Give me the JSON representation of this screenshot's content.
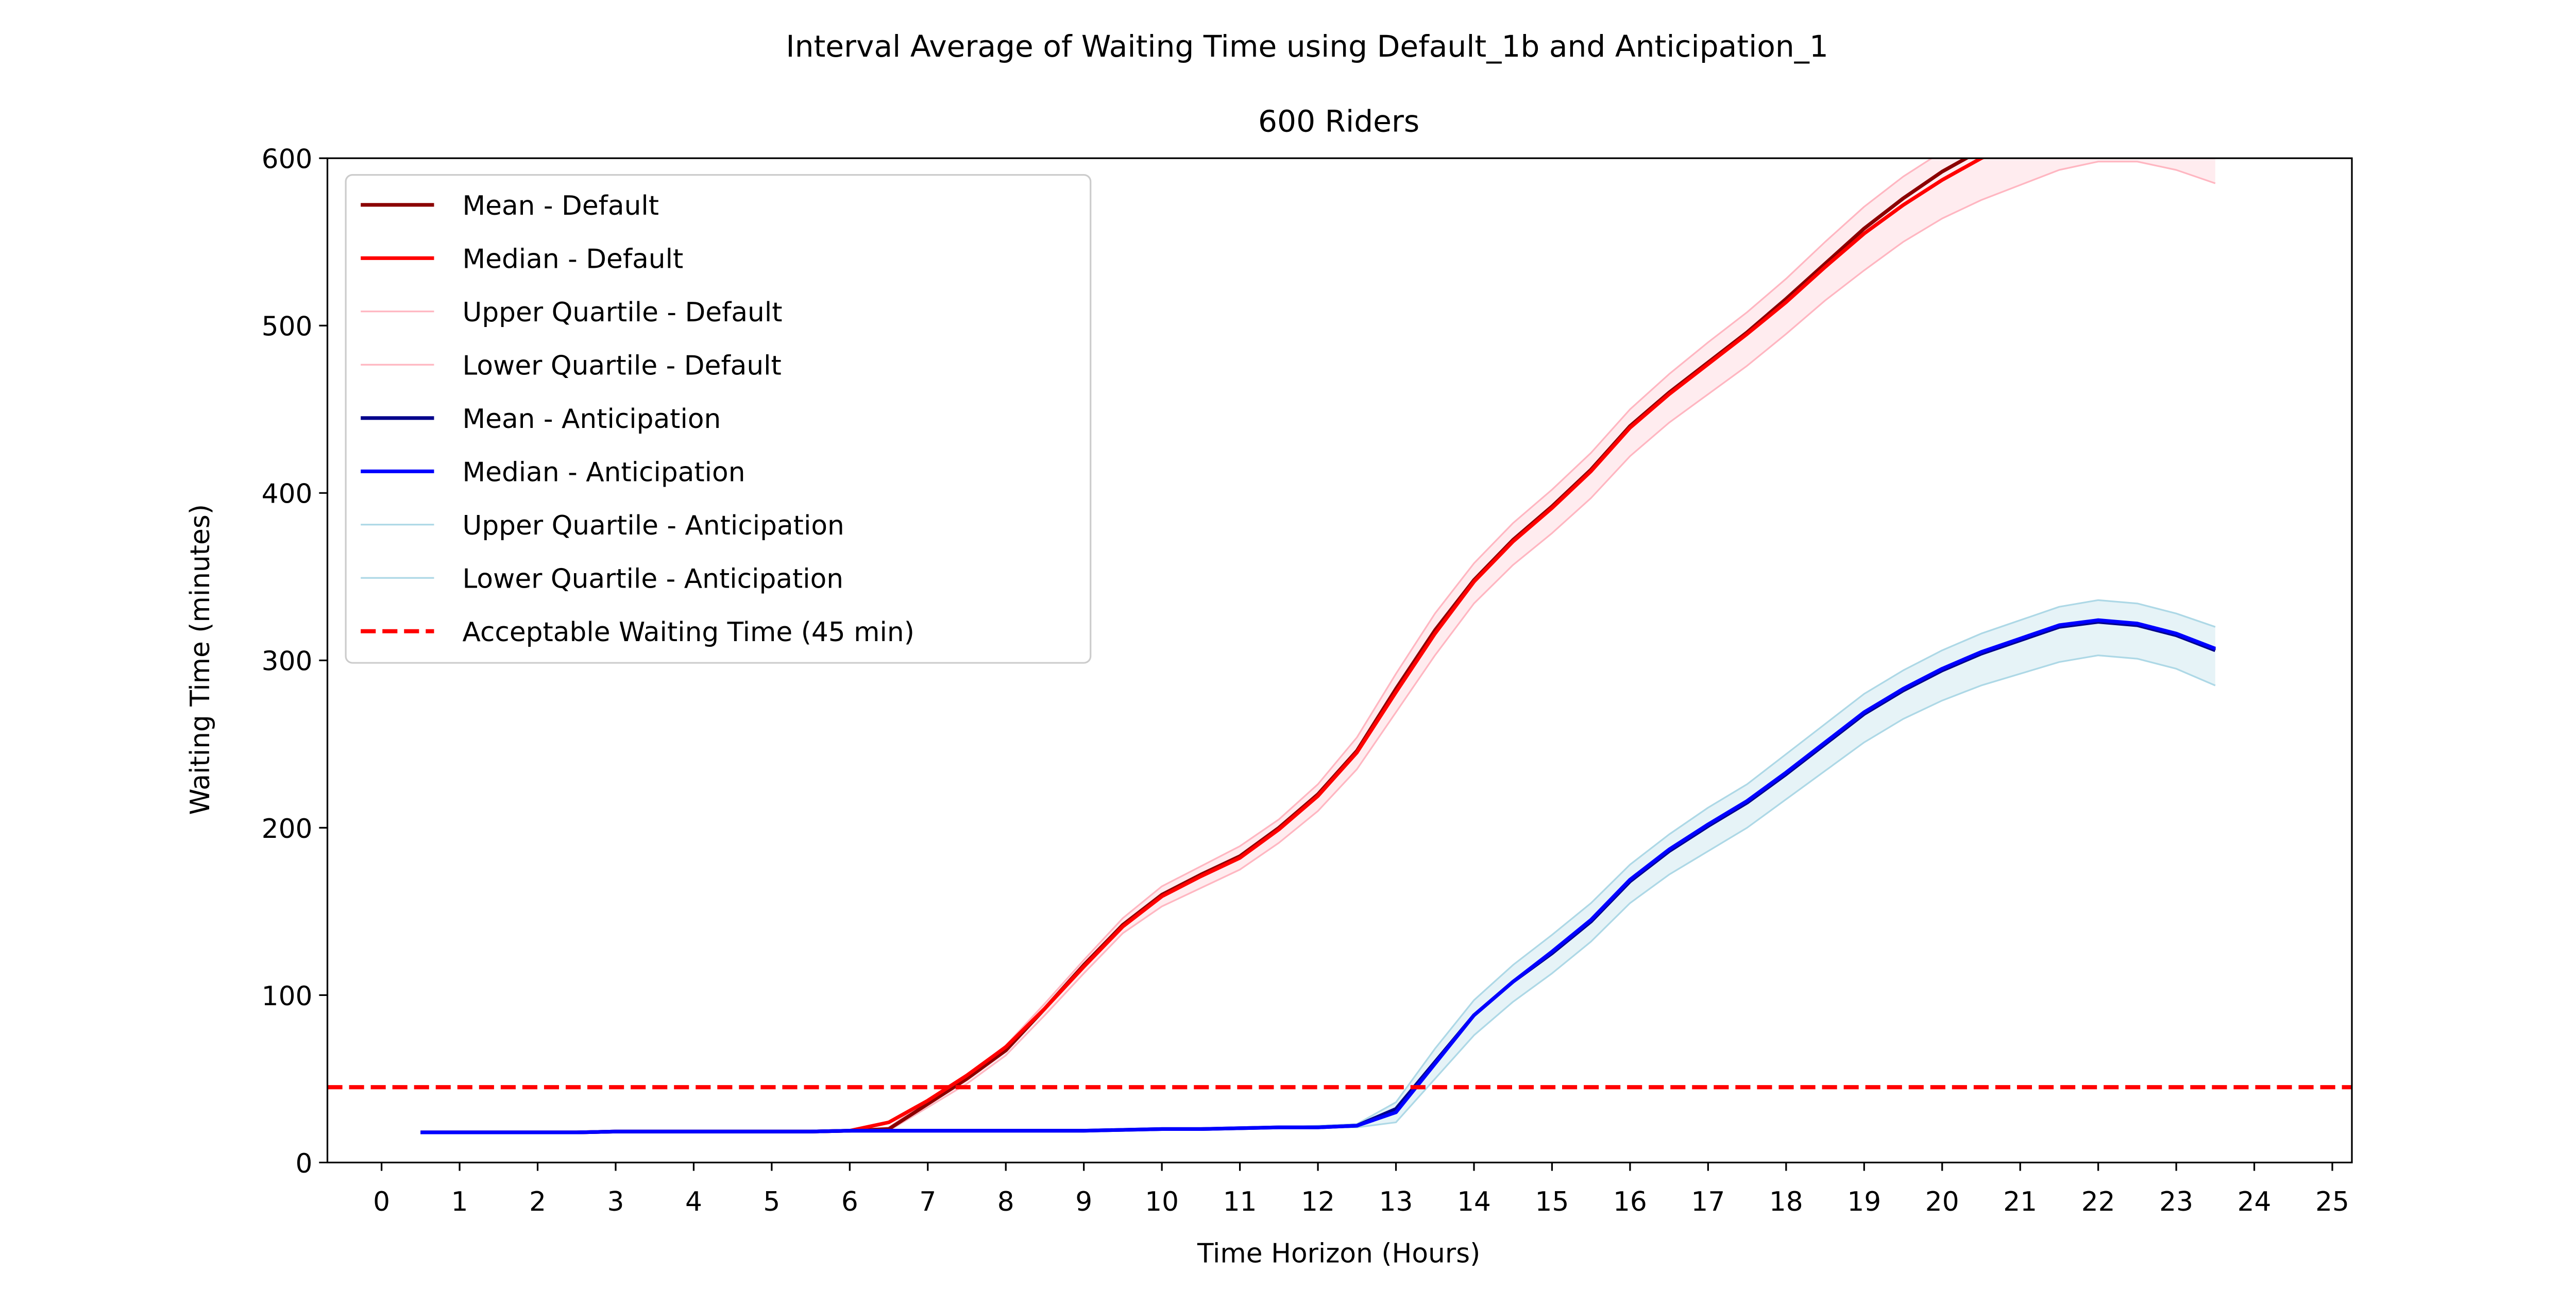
{
  "chart_data": {
    "type": "line",
    "title": "Interval Average of Waiting Time using Default_1b and Anticipation_1",
    "subtitle": "600 Riders",
    "xlabel": "Time Horizon (Hours)",
    "ylabel": "Waiting Time (minutes)",
    "xlim": [
      -0.75,
      25
    ],
    "ylim": [
      0,
      600
    ],
    "xticks": [
      "0",
      "1",
      "2",
      "3",
      "4",
      "5",
      "6",
      "7",
      "8",
      "9",
      "10",
      "11",
      "12",
      "13",
      "14",
      "15",
      "16",
      "17",
      "18",
      "19",
      "20",
      "21",
      "22",
      "23",
      "24",
      "25"
    ],
    "yticks": [
      "0",
      "100",
      "200",
      "300",
      "400",
      "500",
      "600"
    ],
    "grid": false,
    "legend_position": "upper-left",
    "x": [
      0.5,
      1,
      1.5,
      2,
      2.5,
      3,
      3.5,
      4,
      4.5,
      5,
      5.5,
      6,
      6.5,
      7,
      7.5,
      8,
      8.5,
      9,
      9.5,
      10,
      10.5,
      11,
      11.5,
      12,
      12.5,
      13,
      13.5,
      14,
      14.5,
      15,
      15.5,
      16,
      16.5,
      17,
      17.5,
      18,
      18.5,
      19,
      19.5,
      20,
      20.5,
      21,
      21.5,
      22,
      22.5,
      23,
      23.5
    ],
    "series": [
      {
        "name": "Mean - Default",
        "color": "#8b0000",
        "width": 2.2,
        "dash": "",
        "values": [
          18,
          18,
          18,
          18,
          18,
          18.5,
          18.5,
          18.5,
          18.5,
          18.5,
          18.5,
          19,
          20,
          35,
          50,
          67,
          92,
          118,
          142,
          160,
          172,
          183,
          200,
          220,
          246,
          283,
          318,
          348,
          372,
          392,
          414,
          440,
          460,
          478,
          496,
          516,
          537,
          558,
          576,
          592,
          605,
          615,
          623,
          628,
          629,
          628,
          625
        ]
      },
      {
        "name": "Median - Default",
        "color": "#ff0000",
        "width": 2.2,
        "dash": "",
        "values": [
          18,
          18,
          18,
          18,
          18,
          18.5,
          18.5,
          18.5,
          18.5,
          18.5,
          18.5,
          19,
          24,
          37,
          52,
          69,
          92,
          117,
          141,
          159,
          171,
          182,
          199,
          219,
          245,
          281,
          316,
          347,
          371,
          391,
          413,
          439,
          459,
          477,
          495,
          514,
          535,
          555,
          572,
          587,
          600,
          610,
          618,
          623,
          624,
          623,
          620
        ]
      },
      {
        "name": "Upper Quartile - Default",
        "color": "#ffb6c1",
        "width": 1,
        "dash": "",
        "values": [
          18,
          18,
          18,
          18,
          18,
          18.5,
          18.5,
          18.5,
          18.5,
          18.5,
          18.5,
          19,
          21,
          37,
          52,
          70,
          95,
          121,
          146,
          165,
          177,
          189,
          205,
          226,
          254,
          292,
          328,
          358,
          382,
          402,
          424,
          450,
          471,
          490,
          508,
          528,
          550,
          571,
          589,
          604,
          618,
          628,
          636,
          641,
          642,
          641,
          638
        ]
      },
      {
        "name": "Lower Quartile - Default",
        "color": "#ffb6c1",
        "width": 1,
        "dash": "",
        "values": [
          18,
          18,
          18,
          18,
          18,
          18.5,
          18.5,
          18.5,
          18.5,
          18.5,
          18.5,
          19,
          19,
          33,
          47,
          64,
          88,
          113,
          137,
          153,
          164,
          175,
          191,
          210,
          235,
          269,
          303,
          334,
          357,
          376,
          397,
          422,
          442,
          459,
          476,
          495,
          515,
          533,
          550,
          564,
          575,
          584,
          593,
          598,
          598,
          593,
          585
        ]
      },
      {
        "name": "Mean - Anticipation",
        "color": "#00008b",
        "width": 2.2,
        "dash": "",
        "values": [
          18,
          18,
          18,
          18,
          18,
          18.5,
          18.5,
          18.5,
          18.5,
          18.5,
          18.5,
          19,
          19,
          19,
          19,
          19,
          19,
          19,
          19.5,
          20,
          20,
          20.5,
          21,
          21,
          22,
          32,
          60,
          88,
          108,
          125,
          144,
          168,
          186,
          201,
          215,
          232,
          250,
          268,
          282,
          294,
          304,
          312,
          320,
          323,
          321,
          315,
          306
        ]
      },
      {
        "name": "Median - Anticipation",
        "color": "#0000ff",
        "width": 2.2,
        "dash": "",
        "values": [
          18,
          18,
          18,
          18,
          18,
          18.5,
          18.5,
          18.5,
          18.5,
          18.5,
          18.5,
          19,
          19,
          19,
          19,
          19,
          19,
          19,
          19.5,
          20,
          20,
          20.5,
          21,
          21,
          22,
          30,
          59,
          88,
          108,
          126,
          145,
          169,
          187,
          202,
          216,
          233,
          251,
          269,
          283,
          295,
          305,
          313,
          321,
          324,
          322,
          316,
          307
        ]
      },
      {
        "name": "Upper Quartile - Anticipation",
        "color": "#add8e6",
        "width": 1,
        "dash": "",
        "values": [
          18,
          18,
          18,
          18,
          18,
          18.5,
          18.5,
          18.5,
          18.5,
          18.5,
          18.5,
          19,
          19,
          19,
          19,
          19,
          19,
          19,
          19.5,
          20,
          20,
          20.5,
          21,
          22,
          23,
          36,
          68,
          97,
          118,
          136,
          155,
          178,
          196,
          212,
          226,
          244,
          262,
          280,
          294,
          306,
          316,
          324,
          332,
          336,
          334,
          328,
          320
        ]
      },
      {
        "name": "Lower Quartile - Anticipation",
        "color": "#add8e6",
        "width": 1,
        "dash": "",
        "values": [
          18,
          18,
          18,
          18,
          18,
          18.5,
          18.5,
          18.5,
          18.5,
          18.5,
          18.5,
          19,
          19,
          19,
          19,
          19,
          19,
          19,
          19.5,
          20,
          20,
          20.5,
          21,
          21,
          21,
          24,
          50,
          76,
          96,
          113,
          132,
          155,
          172,
          186,
          200,
          217,
          234,
          251,
          265,
          276,
          285,
          292,
          299,
          303,
          301,
          295,
          285
        ]
      }
    ],
    "bands": [
      {
        "upper": "Upper Quartile - Default",
        "lower": "Lower Quartile - Default",
        "color": "#ffc0cb",
        "opacity": 0.3
      },
      {
        "upper": "Upper Quartile - Anticipation",
        "lower": "Lower Quartile - Anticipation",
        "color": "#add8e6",
        "opacity": 0.3
      }
    ],
    "hline": {
      "name": "Acceptable Waiting Time (45 min)",
      "y": 45,
      "color": "#ff0000",
      "width": 2.5,
      "dash": "dashed"
    }
  }
}
